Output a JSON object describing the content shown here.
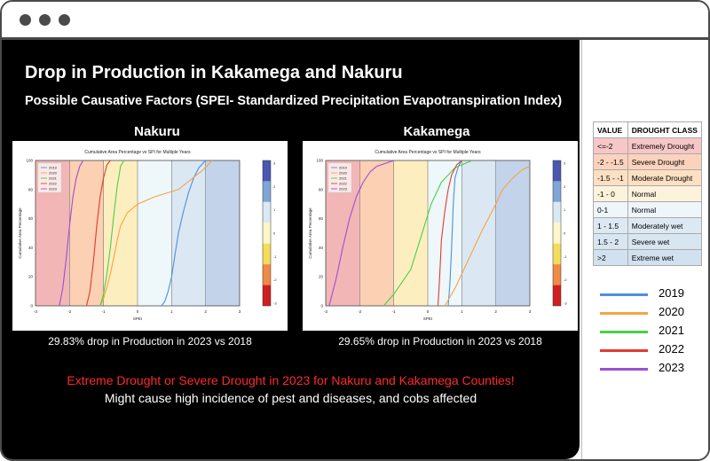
{
  "slide": {
    "title": "Drop in Production in Kakamega and Nakuru",
    "subtitle": "Possible Causative Factors (SPEI- Standardized Precipitation Evapotranspiration Index)",
    "alert_red": "Extreme Drought or Severe Drought in 2023 for Nakuru and Kakamega Counties!",
    "alert_white": "Might cause high incidence of pest and diseases, and cobs affected"
  },
  "drought_table": {
    "headers": [
      "VALUE",
      "DROUGHT CLASS"
    ],
    "rows": [
      {
        "value": "<=-2",
        "cls": "Extremely Drought",
        "color": "#f7c6c6"
      },
      {
        "value": "-2 - -1.5",
        "cls": "Severe Drought",
        "color": "#fbd3bd"
      },
      {
        "value": "-1.5 - -1",
        "cls": "Moderate Drought",
        "color": "#fde0c2"
      },
      {
        "value": "-1 - 0",
        "cls": "Normal",
        "color": "#fdf3dc"
      },
      {
        "value": "0-1",
        "cls": "Normal",
        "color": "#eef6fa"
      },
      {
        "value": "1 - 1.5",
        "cls": "Moderately wet",
        "color": "#dde9f2"
      },
      {
        "value": "1.5 - 2",
        "cls": "Severe wet",
        "color": "#d7e6f1"
      },
      {
        "value": ">2",
        "cls": "Extreme wet",
        "color": "#d2e1ef"
      }
    ]
  },
  "legend": [
    {
      "label": "2019",
      "color": "#4d8fe0"
    },
    {
      "label": "2020",
      "color": "#f5a442"
    },
    {
      "label": "2021",
      "color": "#47d047"
    },
    {
      "label": "2022",
      "color": "#e23a2e"
    },
    {
      "label": "2023",
      "color": "#9b4fd6"
    }
  ],
  "chart_data": [
    {
      "type": "line",
      "heading": "Nakuru",
      "title": "Cumulative Area Percentage vs SPI for Multiple Years",
      "xlabel": "SPEI",
      "ylabel": "Cumulative Area Percentage",
      "xlim": [
        -3,
        3
      ],
      "ylim": [
        0,
        100
      ],
      "x_ticks": [
        "-3",
        "-2",
        "-1",
        "0",
        "1",
        "2",
        "3"
      ],
      "y_ticks": [
        "0",
        "20",
        "40",
        "60",
        "80",
        "100"
      ],
      "colorbar_ticks": [
        "3",
        "2",
        "1",
        "0",
        "-1",
        "-2",
        "-3"
      ],
      "legend_position": "top-left",
      "caption": "29.83% drop in Production in 2023 vs 2018",
      "series": [
        {
          "name": "2019",
          "color": "#4d8fe0",
          "x": [
            0.7,
            0.8,
            0.9,
            1.0,
            1.1,
            1.2,
            1.35,
            1.5,
            1.65,
            1.8,
            2.0
          ],
          "y": [
            0,
            3,
            10,
            20,
            35,
            50,
            65,
            78,
            88,
            95,
            100
          ]
        },
        {
          "name": "2020",
          "color": "#f5a442",
          "x": [
            -1.1,
            -1.0,
            -0.9,
            -0.8,
            -0.7,
            -0.6,
            -0.5,
            -0.3,
            0.0,
            0.5,
            1.2,
            1.9,
            2.2
          ],
          "y": [
            0,
            5,
            13,
            22,
            33,
            45,
            55,
            64,
            70,
            75,
            80,
            93,
            100
          ]
        },
        {
          "name": "2021",
          "color": "#47d047",
          "x": [
            -1.1,
            -1.0,
            -0.9,
            -0.8,
            -0.7,
            -0.6,
            -0.5,
            -0.4
          ],
          "y": [
            0,
            8,
            22,
            40,
            62,
            82,
            96,
            100
          ]
        },
        {
          "name": "2022",
          "color": "#e23a2e",
          "x": [
            -1.5,
            -1.4,
            -1.3,
            -1.2,
            -1.1,
            -1.0,
            -0.9,
            -0.8
          ],
          "y": [
            0,
            10,
            30,
            55,
            75,
            88,
            97,
            100
          ]
        },
        {
          "name": "2023",
          "color": "#9b4fd6",
          "x": [
            -2.3,
            -2.2,
            -2.1,
            -2.0,
            -1.9,
            -1.8,
            -1.7,
            -1.6
          ],
          "y": [
            0,
            12,
            32,
            55,
            75,
            88,
            96,
            100
          ]
        }
      ]
    },
    {
      "type": "line",
      "heading": "Kakamega",
      "title": "Cumulative Area Percentage vs SPI for Multiple Years",
      "xlabel": "SPEI",
      "ylabel": "Cumulative Area Percentage",
      "xlim": [
        -3,
        3
      ],
      "ylim": [
        0,
        100
      ],
      "x_ticks": [
        "-3",
        "-2",
        "-1",
        "0",
        "1",
        "2",
        "3"
      ],
      "y_ticks": [
        "0",
        "20",
        "40",
        "60",
        "80",
        "100"
      ],
      "colorbar_ticks": [
        "3",
        "2",
        "1",
        "0",
        "-1",
        "-2",
        "-3"
      ],
      "legend_position": "top-left",
      "caption": "29.65% drop in Production in 2023 vs 2018",
      "series": [
        {
          "name": "2019",
          "color": "#4d8fe0",
          "x": [
            0.6,
            0.65,
            0.7,
            0.75,
            0.8,
            0.9,
            1.0
          ],
          "y": [
            0,
            15,
            40,
            70,
            88,
            96,
            100
          ]
        },
        {
          "name": "2020",
          "color": "#f5a442",
          "x": [
            0.5,
            0.8,
            1.2,
            1.6,
            2.0,
            2.2,
            2.5,
            2.8,
            3.0
          ],
          "y": [
            0,
            12,
            32,
            52,
            70,
            80,
            88,
            94,
            96
          ]
        },
        {
          "name": "2021",
          "color": "#47d047",
          "x": [
            -1.3,
            -1.0,
            -0.5,
            -0.3,
            -0.1,
            0.1,
            0.4,
            0.8,
            1.3
          ],
          "y": [
            0,
            8,
            25,
            40,
            55,
            70,
            85,
            95,
            100
          ]
        },
        {
          "name": "2022",
          "color": "#e23a2e",
          "x": [
            0.3,
            0.35,
            0.4,
            0.5,
            0.6,
            0.7,
            0.85,
            1.0
          ],
          "y": [
            0,
            20,
            45,
            65,
            80,
            90,
            97,
            100
          ]
        },
        {
          "name": "2023",
          "color": "#9b4fd6",
          "x": [
            -2.9,
            -2.7,
            -2.5,
            -2.3,
            -2.1,
            -1.9,
            -1.7,
            -1.5,
            -1.0
          ],
          "y": [
            0,
            18,
            40,
            60,
            75,
            85,
            92,
            96,
            100
          ]
        }
      ]
    }
  ]
}
